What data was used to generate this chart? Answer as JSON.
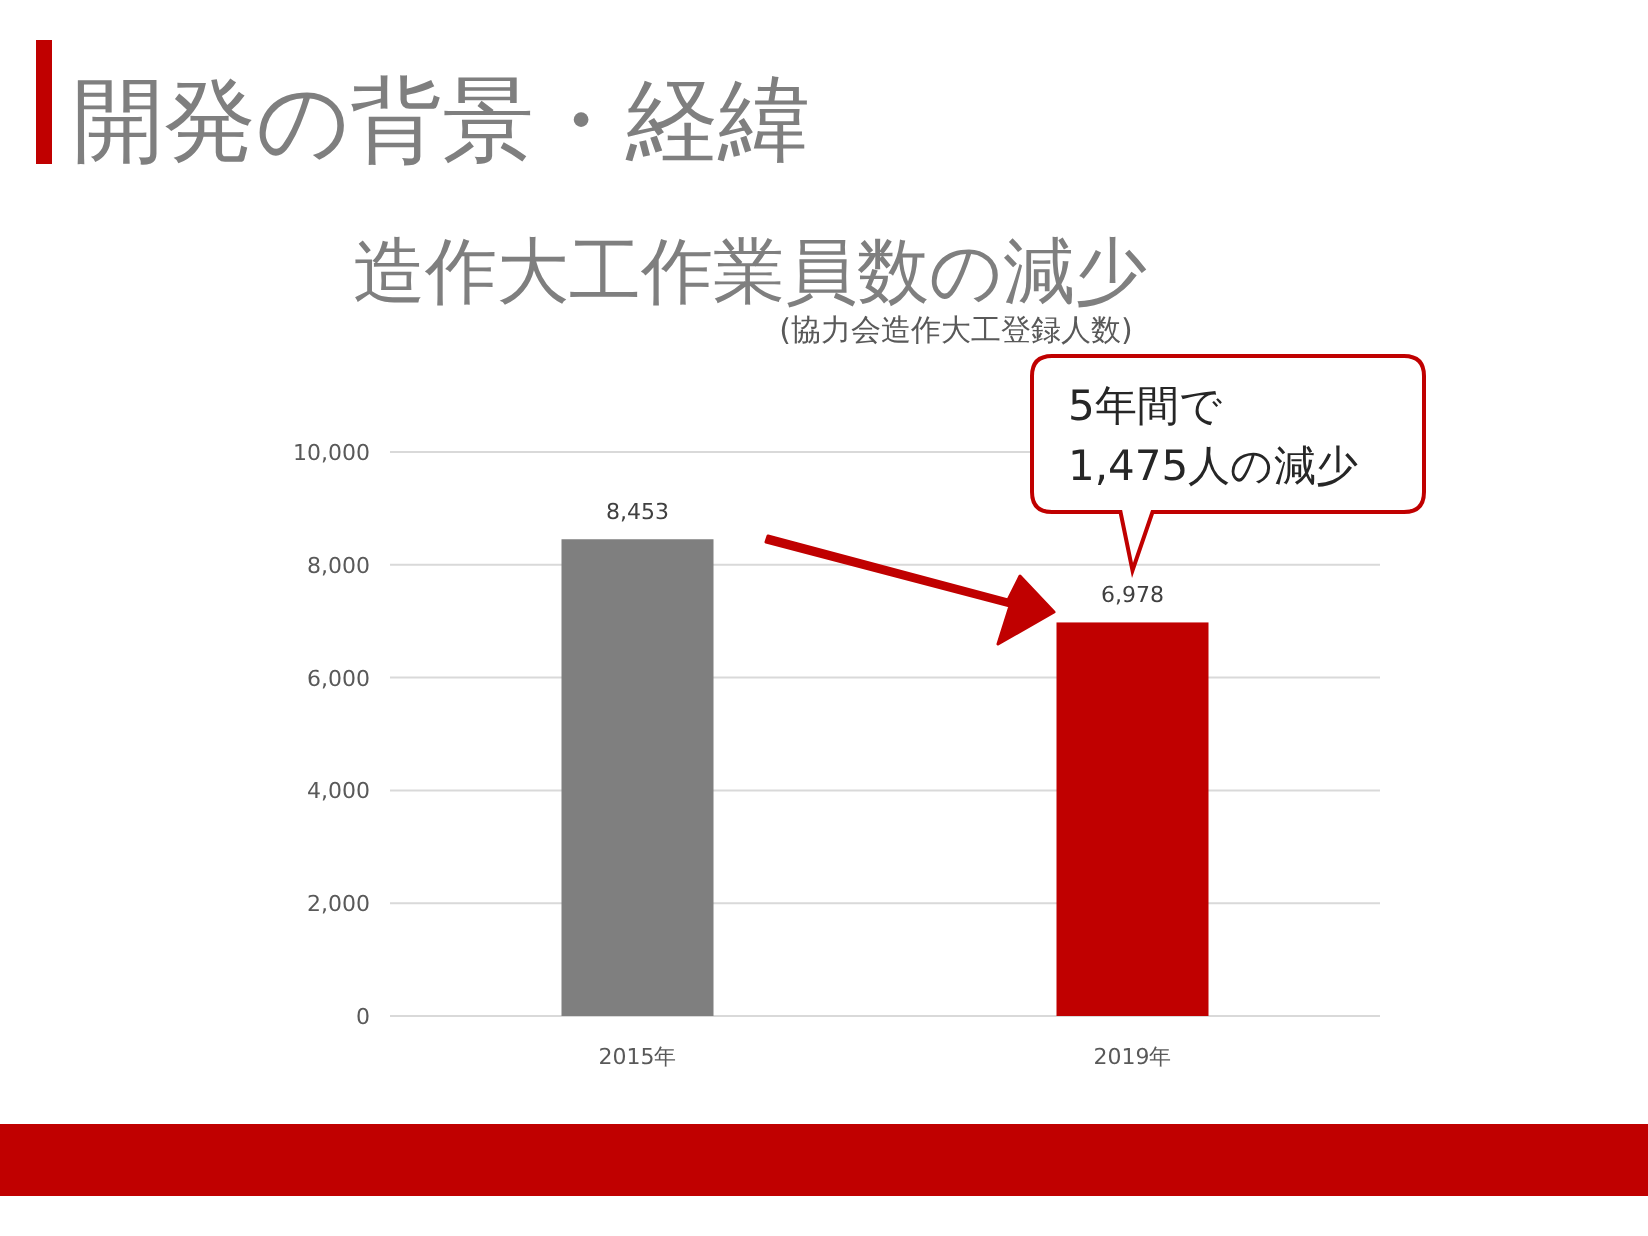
{
  "chart_data": {
    "type": "bar",
    "title": "開発の背景・経緯",
    "subtitle": "造作大工作業員数の減少",
    "categories": [
      "2015年",
      "2019年"
    ],
    "values": [
      8453,
      6978
    ],
    "colors": [
      "#7f7f7f",
      "#c00000"
    ],
    "value_labels": [
      "8,453",
      "6,978"
    ],
    "ylim": [
      0,
      10000
    ],
    "yticks": [
      {
        "value": 0,
        "label": "0"
      },
      {
        "value": 2000,
        "label": "2,000"
      },
      {
        "value": 4000,
        "label": "4,000"
      },
      {
        "value": 6000,
        "label": "6,000"
      },
      {
        "value": 8000,
        "label": "8,000"
      },
      {
        "value": 10000,
        "label": "10,000"
      }
    ],
    "grid": "y",
    "annotations": [
      "(協力会造作大工登録人数)",
      "5年間で\n1,475人の減少"
    ]
  }
}
